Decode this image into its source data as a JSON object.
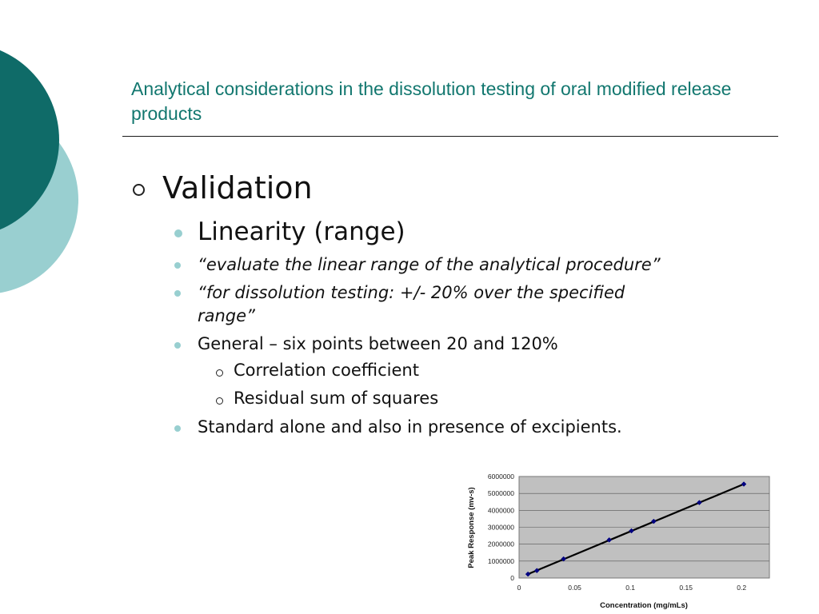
{
  "slide": {
    "title": "Analytical considerations in the dissolution testing of oral modified release products",
    "heading": "Validation",
    "bullets": {
      "linearity": "Linearity (range)",
      "quote1": "“evaluate the linear range of the analytical procedure”",
      "quote2_line1": "“for dissolution testing: +/- 20% over the specified",
      "quote2_line2": "range”",
      "general": "General – six points between 20 and 120%",
      "correlation": "Correlation coefficient",
      "residual": "Residual sum of squares",
      "standard": "Standard alone and also in presence of excipients."
    }
  },
  "colors": {
    "accent_teal": "#0f6b68",
    "light_teal": "#99cfd0",
    "title_teal": "#12776f",
    "plot_area": "#c0c0c0",
    "marker": "#000080"
  },
  "chart_data": {
    "type": "scatter",
    "xlabel": "Concentration (mg/mLs)",
    "ylabel": "Peak Response (mv-s)",
    "xlim": [
      0,
      0.225
    ],
    "ylim": [
      0,
      6000000
    ],
    "x_ticks": [
      "0",
      "0.05",
      "0.1",
      "0.15",
      "0.2"
    ],
    "y_ticks": [
      "0",
      "1000000",
      "2000000",
      "3000000",
      "4000000",
      "5000000",
      "6000000"
    ],
    "grid": "horizontal",
    "points": [
      {
        "x": 0.008,
        "y": 230000
      },
      {
        "x": 0.016,
        "y": 440000
      },
      {
        "x": 0.04,
        "y": 1130000
      },
      {
        "x": 0.081,
        "y": 2250000
      },
      {
        "x": 0.101,
        "y": 2790000
      },
      {
        "x": 0.121,
        "y": 3350000
      },
      {
        "x": 0.162,
        "y": 4460000
      },
      {
        "x": 0.202,
        "y": 5550000
      }
    ],
    "trendline": [
      [
        0.008,
        230000
      ],
      [
        0.202,
        5550000
      ]
    ]
  }
}
